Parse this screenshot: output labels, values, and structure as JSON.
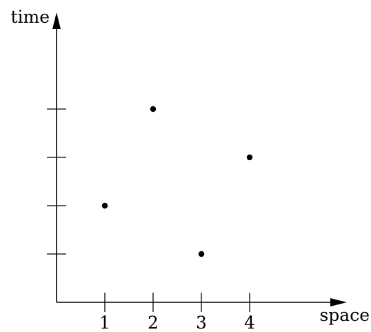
{
  "chart_data": {
    "type": "scatter",
    "xlabel": "space",
    "ylabel": "time",
    "x_ticks": [
      "1",
      "2",
      "3",
      "4"
    ],
    "y_tick_count": 4,
    "xlim": [
      0,
      6
    ],
    "ylim": [
      0,
      5.5
    ],
    "points": [
      {
        "x": 1,
        "y": 2
      },
      {
        "x": 2,
        "y": 4
      },
      {
        "x": 3,
        "y": 1
      },
      {
        "x": 4,
        "y": 3
      }
    ],
    "grid": false,
    "legend": "none"
  }
}
